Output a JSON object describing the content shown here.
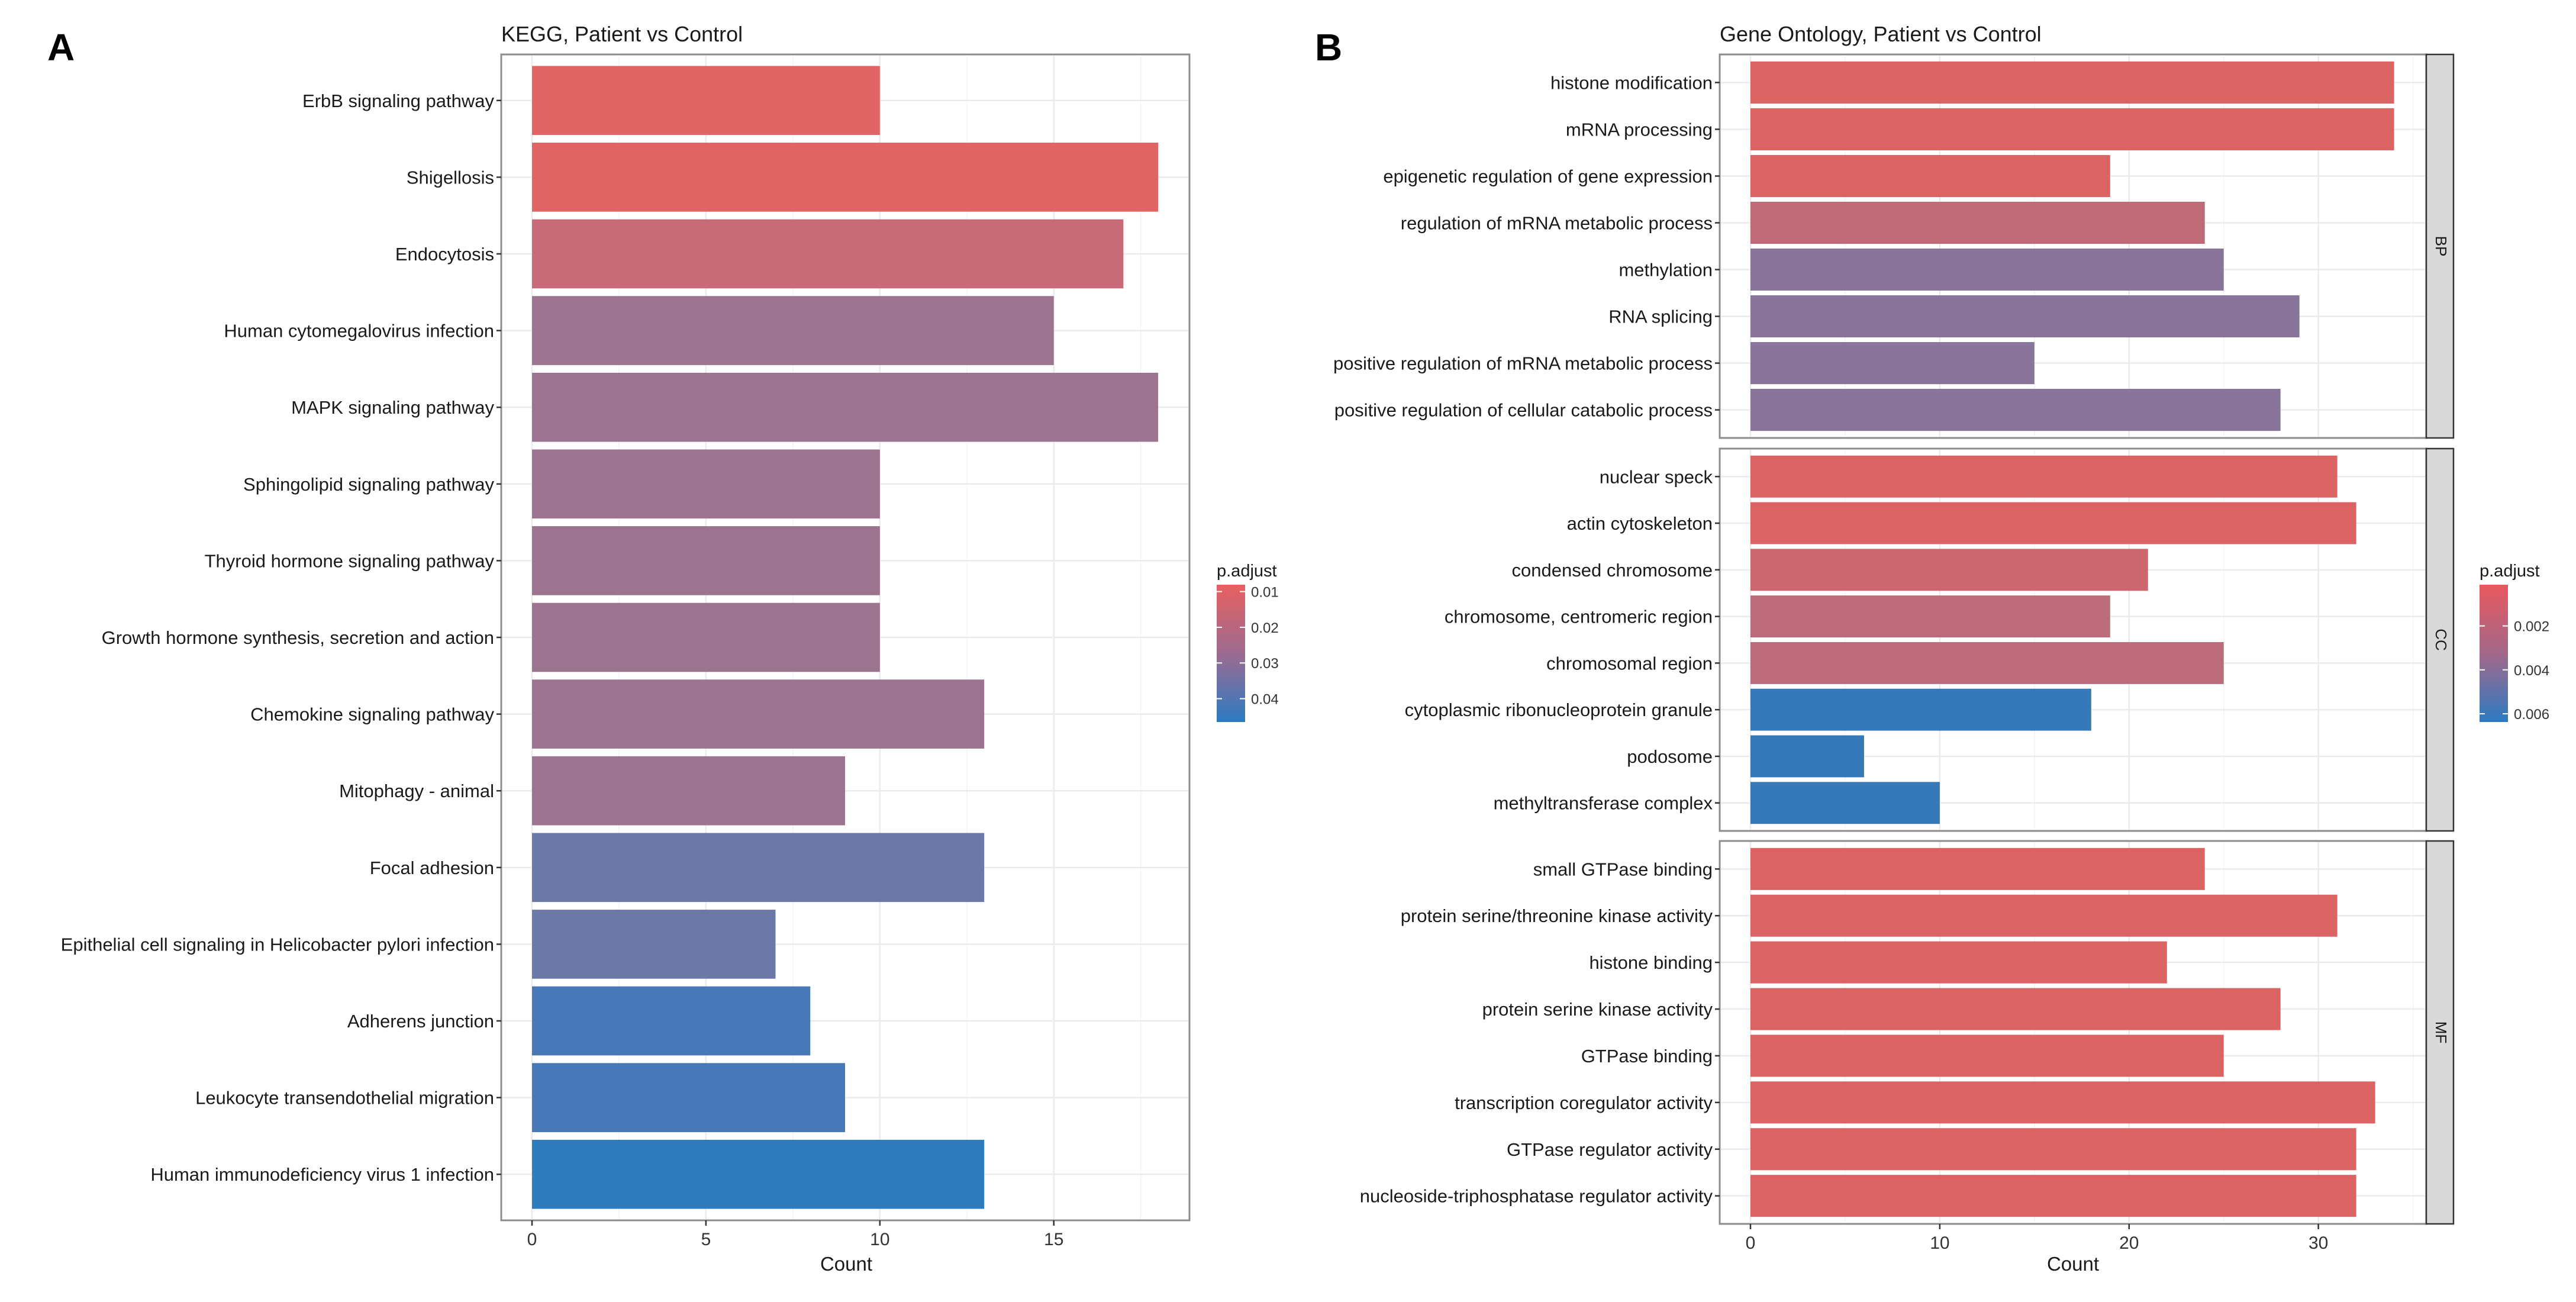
{
  "figure": {
    "panels": [
      "A",
      "B"
    ]
  },
  "chart_data": [
    {
      "type": "bar",
      "orientation": "horizontal",
      "panel_label": "A",
      "title": "KEGG, Patient vs Control",
      "xlabel": "Count",
      "ylabel": "",
      "xlim": [
        0,
        18.9
      ],
      "xticks": [
        0,
        5,
        10,
        15
      ],
      "grid": true,
      "legend": {
        "title": "p.adjust",
        "type": "colorbar",
        "placement": "right",
        "ticks": [
          "0.01",
          "0.02",
          "0.03",
          "0.04"
        ],
        "range": [
          0.006,
          0.049
        ],
        "low_color": "#e06666",
        "high_color": "#2e7bbd"
      },
      "categories": [
        "ErbB signaling pathway",
        "Shigellosis",
        "Endocytosis",
        "Human cytomegalovirus infection",
        "MAPK signaling pathway",
        "Sphingolipid signaling pathway",
        "Thyroid hormone signaling pathway",
        "Growth hormone synthesis, secretion and action",
        "Chemokine signaling pathway",
        "Mitophagy - animal",
        "Focal adhesion",
        "Epithelial cell signaling in Helicobacter pylori infection",
        "Adherens junction",
        "Leukocyte transendothelial migration",
        "Human immunodeficiency virus 1 infection"
      ],
      "values": [
        10,
        18,
        17,
        15,
        18,
        10,
        10,
        10,
        13,
        9,
        13,
        7,
        8,
        9,
        13
      ],
      "bar_colors": [
        "#e06666",
        "#df6565",
        "#c86a77",
        "#9c748f",
        "#9c748f",
        "#9c748f",
        "#9c748f",
        "#9c748f",
        "#9c748f",
        "#9c748f",
        "#6b78a8",
        "#6b78a8",
        "#4679b5",
        "#4679b5",
        "#2e7bbd"
      ]
    },
    {
      "type": "bar",
      "orientation": "horizontal",
      "panel_label": "B",
      "title": "Gene Ontology, Patient vs Control",
      "xlabel": "Count",
      "ylabel": "",
      "xlim": [
        0,
        35.7
      ],
      "xticks": [
        0,
        10,
        20,
        30
      ],
      "grid": true,
      "legend": {
        "title": "p.adjust",
        "type": "colorbar",
        "placement": "right",
        "ticks": [
          "0.002",
          "0.004",
          "0.006"
        ],
        "range": [
          0.0001,
          0.0065
        ],
        "low_color": "#e05a5f",
        "high_color": "#2e7bbd"
      },
      "facets": [
        {
          "name": "BP",
          "categories": [
            "histone modification",
            "mRNA processing",
            "epigenetic regulation of gene expression",
            "regulation of mRNA metabolic process",
            "methylation",
            "RNA splicing",
            "positive regulation of mRNA metabolic process",
            "positive regulation of cellular catabolic process"
          ],
          "values": [
            34,
            34,
            19,
            24,
            25,
            29,
            15,
            28
          ],
          "bar_colors": [
            "#dc6364",
            "#dc6364",
            "#dc6364",
            "#c06a77",
            "#887599",
            "#887599",
            "#887599",
            "#887599"
          ]
        },
        {
          "name": "CC",
          "categories": [
            "nuclear speck",
            "actin cytoskeleton",
            "condensed chromosome",
            "chromosome, centromeric region",
            "chromosomal region",
            "cytoplasmic ribonucleoprotein granule",
            "podosome",
            "methyltransferase complex"
          ],
          "values": [
            31,
            32,
            21,
            19,
            25,
            18,
            6,
            10
          ],
          "bar_colors": [
            "#dc6364",
            "#dc6364",
            "#cc676f",
            "#bc6b7a",
            "#bc6b7a",
            "#3579b8",
            "#3579b8",
            "#3579b8"
          ]
        },
        {
          "name": "MF",
          "categories": [
            "small GTPase binding",
            "protein serine/threonine kinase activity",
            "histone binding",
            "protein serine kinase activity",
            "GTPase binding",
            "transcription coregulator activity",
            "GTPase regulator activity",
            "nucleoside-triphosphatase regulator activity"
          ],
          "values": [
            24,
            31,
            22,
            28,
            25,
            33,
            32,
            32
          ],
          "bar_colors": [
            "#dc6364",
            "#dc6364",
            "#dc6364",
            "#dc6364",
            "#dc6364",
            "#dc6364",
            "#dc6364",
            "#dc6364"
          ]
        }
      ]
    }
  ]
}
